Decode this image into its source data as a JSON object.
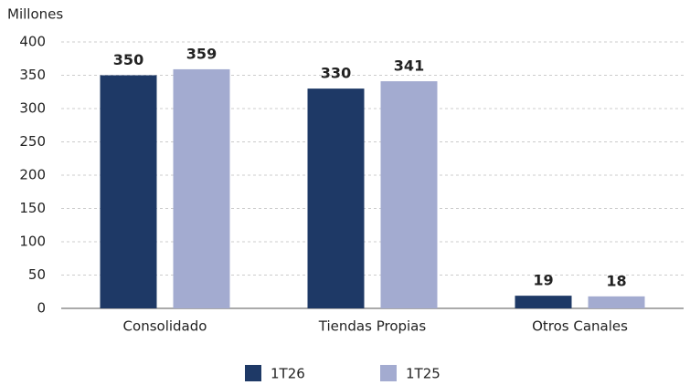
{
  "chart_data": {
    "type": "bar",
    "ylabel": "Millones",
    "categories": [
      "Consolidado",
      "Tiendas Propias",
      "Otros Canales"
    ],
    "series": [
      {
        "name": "1T26",
        "color": "#1e3966",
        "values": [
          350,
          330,
          19
        ]
      },
      {
        "name": "1T25",
        "color": "#a3abd0",
        "values": [
          359,
          341,
          18
        ]
      }
    ],
    "ylim": [
      0,
      400
    ],
    "yticks": [
      0,
      50,
      100,
      150,
      200,
      250,
      300,
      350,
      400
    ],
    "grid": true,
    "legend": "bottom"
  }
}
